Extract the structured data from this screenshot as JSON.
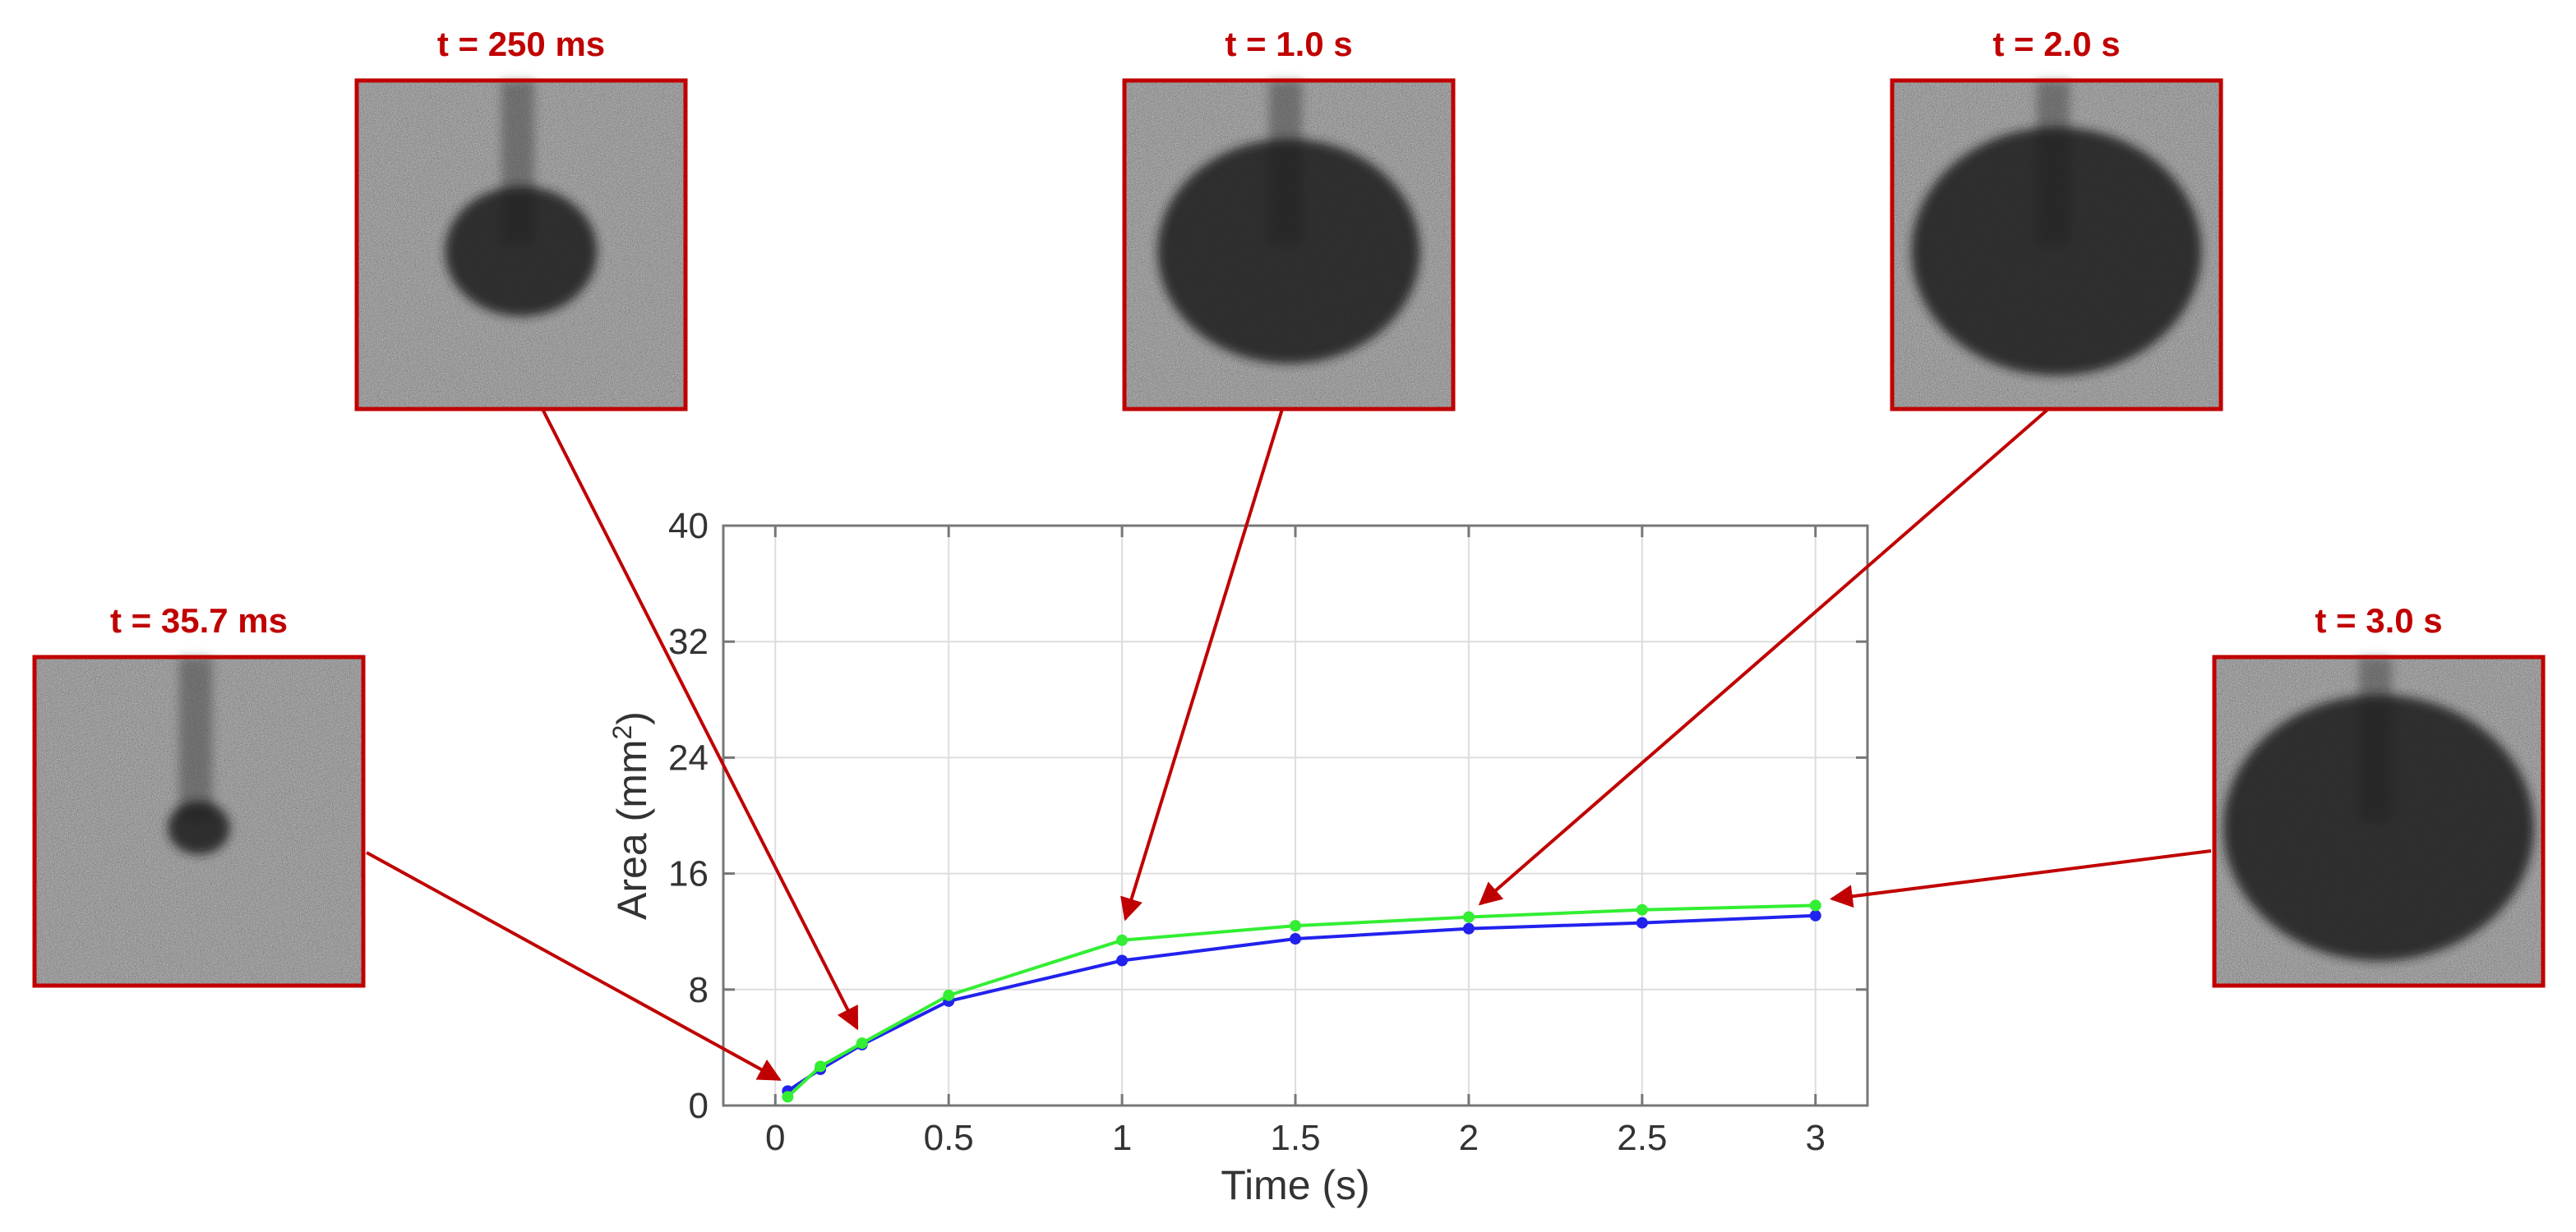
{
  "colors": {
    "annotation": "#c00000",
    "series_blue": "#2222ee",
    "series_green": "#33ee33",
    "grid": "#dddddd",
    "axis": "#777777",
    "text": "#333333"
  },
  "snapshots": [
    {
      "label": "t = 35.7 ms",
      "t": 0.0357,
      "area": 1.0,
      "blob": 0.09
    },
    {
      "label": "t = 250 ms",
      "t": 0.25,
      "area": 4.2,
      "blob": 0.22
    },
    {
      "label": "t = 1.0 s",
      "t": 1.0,
      "area": 11.4,
      "blob": 0.38
    },
    {
      "label": "t = 2.0 s",
      "t": 2.0,
      "area": 13.0,
      "blob": 0.42
    },
    {
      "label": "t = 3.0 s",
      "t": 3.0,
      "area": 13.8,
      "blob": 0.45
    }
  ],
  "chart_data": {
    "type": "line",
    "title": "",
    "xlabel": "Time (s)",
    "ylabel": "Area (mm²)",
    "xlim": [
      -0.15,
      3.15
    ],
    "ylim": [
      0,
      40
    ],
    "xticks": [
      0,
      0.5,
      1,
      1.5,
      2,
      2.5,
      3
    ],
    "xtick_labels": [
      "0",
      "0.5",
      "1",
      "1.5",
      "2",
      "2.5",
      "3"
    ],
    "yticks": [
      0,
      8,
      16,
      24,
      32,
      40
    ],
    "ytick_labels": [
      "0",
      "8",
      "16",
      "24",
      "32",
      "40"
    ],
    "grid": true,
    "series": [
      {
        "color": "#2222ee",
        "x": [
          0.0357,
          0.13,
          0.25,
          0.5,
          1.0,
          1.5,
          2.0,
          2.5,
          3.0
        ],
        "y": [
          1.0,
          2.5,
          4.2,
          7.2,
          10.0,
          11.5,
          12.2,
          12.6,
          13.1
        ]
      },
      {
        "color": "#33ee33",
        "x": [
          0.0357,
          0.13,
          0.25,
          0.5,
          1.0,
          1.5,
          2.0,
          2.5,
          3.0
        ],
        "y": [
          0.6,
          2.7,
          4.3,
          7.6,
          11.4,
          12.4,
          13.0,
          13.5,
          13.8
        ]
      }
    ]
  }
}
